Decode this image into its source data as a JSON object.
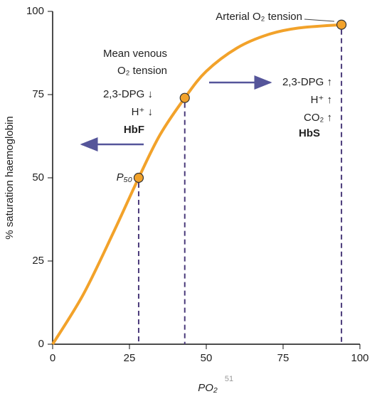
{
  "chart_data": {
    "type": "line",
    "y_label": "% saturation haemoglobin",
    "x_label": "PO₂",
    "xlim": [
      0,
      100
    ],
    "xticks": [
      0,
      25,
      50,
      75,
      100
    ],
    "ylim": [
      0,
      100
    ],
    "yticks": [
      0,
      25,
      50,
      75,
      100
    ],
    "grid": false,
    "curve": {
      "color": "#f2a22a",
      "x": [
        0,
        10,
        20,
        28,
        35,
        43,
        50,
        60,
        70,
        80,
        94
      ],
      "values": [
        0,
        15,
        34,
        50,
        63,
        74,
        82,
        89,
        93,
        95,
        96
      ]
    },
    "points": {
      "color": "#f2a22a",
      "x": [
        28,
        43,
        94
      ],
      "values": [
        50,
        74,
        96
      ]
    },
    "annotations": [
      "Arterial O₂ tension",
      "Mean venous",
      "O₂ tension",
      "2,3-DPG ↓",
      "H⁺ ↓",
      "HbF",
      "2,3-DPG ↑",
      "H⁺ ↑",
      "CO₂ ↑",
      "HbS",
      "P₅₀"
    ],
    "page_number": "51"
  }
}
